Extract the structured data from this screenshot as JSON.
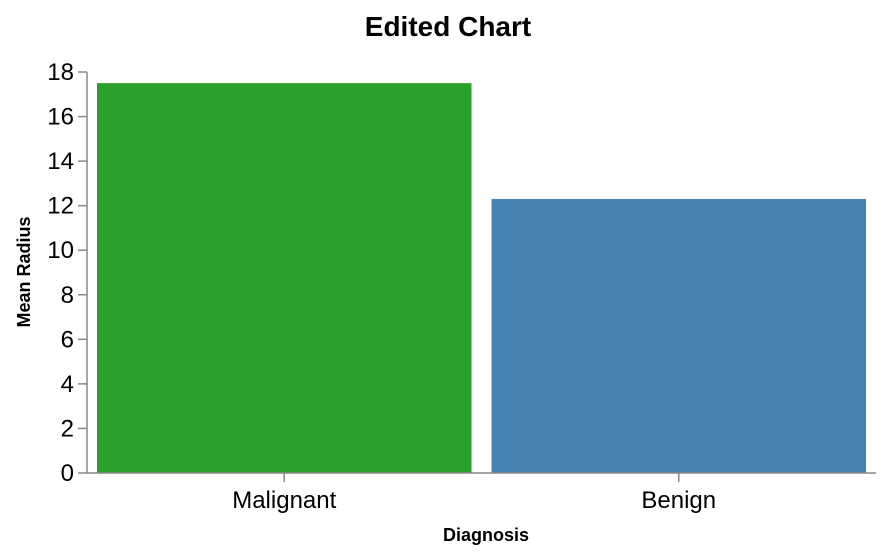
{
  "chart_data": {
    "type": "bar",
    "title": "Edited Chart",
    "xlabel": "Diagnosis",
    "ylabel": "Mean Radius",
    "categories": [
      "Malignant",
      "Benign"
    ],
    "values": [
      17.5,
      12.3
    ],
    "colors": [
      "#2ca02c",
      "#4682b4"
    ],
    "ylim": [
      0,
      18
    ],
    "yticks": [
      0,
      2,
      4,
      6,
      8,
      10,
      12,
      14,
      16,
      18
    ],
    "grid": false,
    "legend": "none"
  }
}
